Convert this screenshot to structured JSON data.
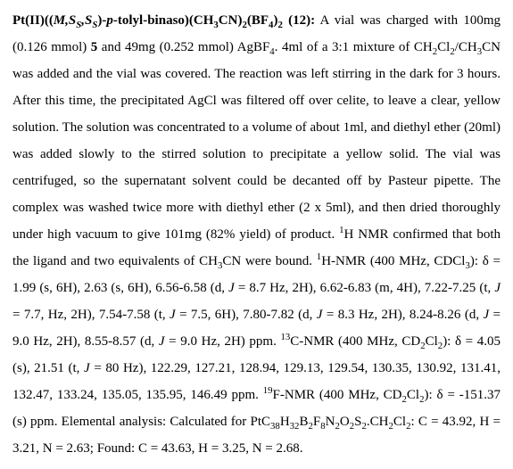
{
  "typography": {
    "font_family": "Times New Roman",
    "font_size_pt": 15,
    "line_height": 2.0,
    "text_color": "#000000",
    "background_color": "#ffffff",
    "text_align": "justify"
  },
  "compound_header": {
    "element": "Pt(II)",
    "ligand_prefix": "((",
    "stereo": "M,S_S,S_S",
    "ligand_core": ")-",
    "aryl_prefix_italic": "p",
    "aryl_rest": "-tolyl-binaso)(CH",
    "acn_sub1": "3",
    "acn_mid": "CN)",
    "acn_sub2": "2",
    "bf4_open": "(BF",
    "bf4_sub1": "4",
    "bf4_close": ")",
    "bf4_sub2": "2",
    "compound_number": " (12):"
  },
  "body": {
    "s1a": " A vial was charged with 100mg (0.126 mmol) ",
    "s1_bold5": "5",
    "s1b": " and 49mg (0.252 mmol) AgBF",
    "s1_sub4": "4",
    "s1c": ". 4ml of a 3:1 mixture of CH",
    "s1_sub2a": "2",
    "s1d": "Cl",
    "s1_sub2b": "2",
    "s1e": "/CH",
    "s1_sub3a": "3",
    "s1f": "CN was added and the vial was covered. The reaction was left stirring in the dark for 3 hours. After this time, the precipitated AgCl was filtered off over celite, to leave a clear, yellow solution. The solution was concentrated to a volume of about 1ml, and diethyl ether (20ml) was added slowly to the stirred solution to precipitate a yellow solid. The vial was centrifuged, so the supernatant solvent could be decanted off by Pasteur pipette. The complex was washed twice more with diethyl ether (2 x 5ml), and then dried thoroughly under high vacuum to give 101mg (82% yield) of product. ",
    "s1_sup1": "1",
    "s1g": "H NMR confirmed that both the ligand and two equivalents of CH",
    "s1_sub3b": "3",
    "s1h": "CN were bound. ",
    "h1_sup": "1",
    "h1_label": "H-NMR (400 MHz, CDCl",
    "h1_sub3": "3",
    "h1_data": "): δ = 1.99 (s, 6H), 2.63 (s, 6H), 6.56-6.58 (d, ",
    "J1": "J",
    "h1_d1": " = 8.7 Hz, 2H), 6.62-6.83 (m, 4H), 7.22-7.25 (t, ",
    "J2": "J",
    "h1_d2": " = 7.7, Hz, 2H), 7.54-7.58 (t, ",
    "J3": "J",
    "h1_d3": " = 7.5, 6H), 7.80-7.82 (d, ",
    "J4": "J",
    "h1_d4": " = 8.3 Hz, 2H), 8.24-8.26 (d, ",
    "J5": "J",
    "h1_d5": " = 9.0 Hz, 2H), 8.55-8.57 (d, ",
    "J6": "J",
    "h1_d6": " = 9.0 Hz, 2H) ppm. ",
    "c13_sup": "13",
    "c13_label": "C-NMR (400 MHz, CD",
    "c13_sub2a": "2",
    "c13_mid": "Cl",
    "c13_sub2b": "2",
    "c13_data_a": "): δ = 4.05 (s), 21.51 (t, ",
    "J7": "J",
    "c13_data_b": " = 80 Hz), 122.29, 127.21, 128.94, 129.13, 129.54, 130.35, 130.92, 131.41, 132.47, 133.24, 135.05, 135.95, 146.49 ppm. ",
    "f19_sup": "19",
    "f19_label": "F-NMR (400 MHz, CD",
    "f19_sub2a": "2",
    "f19_mid": "Cl",
    "f19_sub2b": "2",
    "f19_data": "): δ = -151.37 (s) ppm. Elemental analysis: Calculated for PtC",
    "ea_sub38": "38",
    "ea_h": "H",
    "ea_sub32": "32",
    "ea_b": "B",
    "ea_sub2a": "2",
    "ea_f": "F",
    "ea_sub8": "8",
    "ea_n": "N",
    "ea_sub2b": "2",
    "ea_o": "O",
    "ea_sub2c": "2",
    "ea_s": "S",
    "ea_sub2d": "2",
    "ea_dot": ".CH",
    "ea_sub2e": "2",
    "ea_cl": "Cl",
    "ea_sub2f": "2",
    "ea_calc": ": C = 43.92, H = 3.21, N = 2.63; Found: C = 43.63, H = 3.25, N = 2.68."
  }
}
